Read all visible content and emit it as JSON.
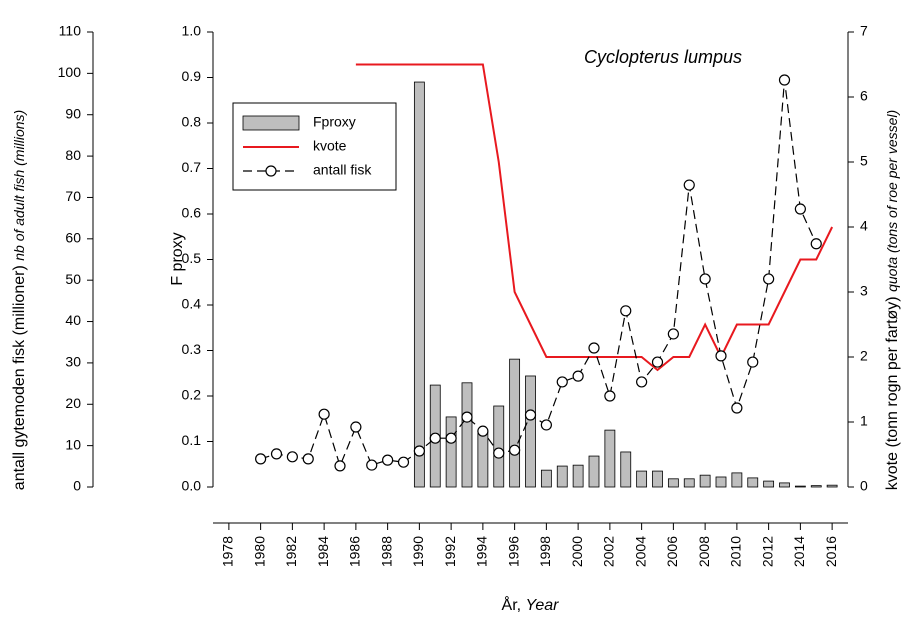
{
  "chart_data": {
    "type": "combo",
    "title": "Cyclopterus lumpus",
    "xlabel": {
      "main": "År,",
      "english": "Year"
    },
    "ylabel": "F proxy",
    "y3label": {
      "main": "antall gytemoden fisk (millioner)",
      "english": "nb of adult fish (millions)"
    },
    "y2label": {
      "main": "kvote (tonn rogn per fartøy)",
      "english": "quota (tons of roe per vessel)"
    },
    "x": [
      1980,
      1981,
      1982,
      1983,
      1984,
      1985,
      1986,
      1987,
      1988,
      1989,
      1990,
      1991,
      1992,
      1993,
      1994,
      1995,
      1996,
      1997,
      1998,
      1999,
      2000,
      2001,
      2002,
      2003,
      2004,
      2005,
      2006,
      2007,
      2008,
      2009,
      2010,
      2011,
      2012,
      2013,
      2014,
      2015,
      2016
    ],
    "xlim": [
      1977,
      2017
    ],
    "xticks": [
      1978,
      1980,
      1982,
      1984,
      1986,
      1988,
      1990,
      1992,
      1994,
      1996,
      1998,
      2000,
      2002,
      2004,
      2006,
      2008,
      2010,
      2012,
      2014,
      2016
    ],
    "ylim": [
      0,
      1
    ],
    "yticks": [
      {
        "value": 0,
        "label": "0.0"
      },
      0.1,
      0.2,
      0.3,
      0.4,
      0.5,
      0.6,
      0.7,
      0.8,
      0.9,
      {
        "value": 1,
        "label": "1.0"
      }
    ],
    "y2lim": [
      0,
      7
    ],
    "y2ticks": [
      0,
      1,
      2,
      3,
      4,
      5,
      6,
      7
    ],
    "y3lim": [
      0,
      110
    ],
    "y3ticks": [
      0,
      10,
      20,
      30,
      40,
      50,
      60,
      70,
      80,
      90,
      100,
      110
    ],
    "legend": "upper left",
    "series": [
      {
        "name": "Fproxy",
        "type": "bar",
        "color": "#bebebe",
        "values": [
          null,
          null,
          null,
          null,
          null,
          null,
          null,
          null,
          null,
          null,
          0.89,
          0.224,
          0.154,
          0.229,
          0.121,
          0.178,
          0.281,
          0.244,
          0.037,
          0.046,
          0.048,
          0.068,
          0.125,
          0.077,
          0.035,
          0.035,
          0.018,
          0.018,
          0.026,
          0.022,
          0.031,
          0.02,
          0.013,
          0.009,
          0.002,
          0.003,
          0.004
        ]
      },
      {
        "name": "kvote",
        "type": "line",
        "axis": "y2",
        "color": "#e8191f",
        "values": [
          null,
          null,
          null,
          null,
          null,
          null,
          6.5,
          6.5,
          6.5,
          6.5,
          6.5,
          6.5,
          6.5,
          6.5,
          6.5,
          5.0,
          3.0,
          2.5,
          2.0,
          2.0,
          2.0,
          2.0,
          2.0,
          2.0,
          2.0,
          1.8,
          2.0,
          2.0,
          2.5,
          2.0,
          2.5,
          2.5,
          2.5,
          3.0,
          3.5,
          3.5,
          4.0
        ]
      },
      {
        "name": "antall fisk",
        "type": "dashed-marker",
        "axis": "y3",
        "color": "#000000",
        "values": [
          6.8,
          8.0,
          7.3,
          6.8,
          17.6,
          5.1,
          14.5,
          5.3,
          6.5,
          6.0,
          8.7,
          11.8,
          11.8,
          16.9,
          13.5,
          8.2,
          8.9,
          17.4,
          15.0,
          25.4,
          26.8,
          33.6,
          22.0,
          42.6,
          25.4,
          30.2,
          37.0,
          73.0,
          50.3,
          31.7,
          19.1,
          30.2,
          50.3,
          98.4,
          67.2,
          58.8,
          null
        ]
      }
    ]
  }
}
